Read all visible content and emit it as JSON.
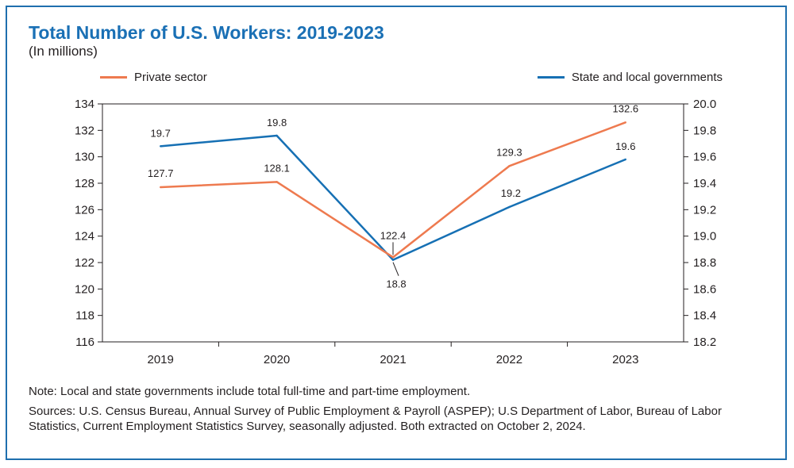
{
  "header": {
    "title": "Total Number of U.S. Workers: 2019-2023",
    "subtitle": "(In millions)"
  },
  "colors": {
    "private": "#ee7a4f",
    "state": "#1670b4",
    "axis": "#231f20",
    "title": "#1a70b5"
  },
  "notes": {
    "note": "Note: Local and state governments include total full-time and part-time employment.",
    "sources": "Sources: U.S. Census Bureau, Annual Survey of Public Employment & Payroll (ASPEP); U.S Department of Labor, Bureau of Labor Statistics, Current Employment Statistics Survey, seasonally adjusted. Both extracted on October 2, 2024."
  },
  "chart_data": {
    "type": "line",
    "title": "Total Number of U.S. Workers: 2019-2023",
    "subtitle": "(In millions)",
    "categories": [
      "2019",
      "2020",
      "2021",
      "2022",
      "2023"
    ],
    "series": [
      {
        "name": "Private sector",
        "axis": "left",
        "color": "#ee7a4f",
        "values": [
          127.7,
          128.1,
          122.4,
          129.3,
          132.6
        ],
        "labels": [
          "127.7",
          "128.1",
          "122.4",
          "129.3",
          "132.6"
        ]
      },
      {
        "name": "State and local governments",
        "axis": "right",
        "color": "#1670b4",
        "values": [
          19.68,
          19.76,
          18.82,
          19.22,
          19.58
        ],
        "labels": [
          "19.7",
          "19.8",
          "18.8",
          "19.2",
          "19.6"
        ]
      }
    ],
    "y_left": {
      "min": 116,
      "max": 134,
      "ticks": [
        "116",
        "118",
        "120",
        "122",
        "124",
        "126",
        "128",
        "130",
        "132",
        "134"
      ]
    },
    "y_right": {
      "min": 18.2,
      "max": 20.0,
      "ticks": [
        "18.2",
        "18.4",
        "18.6",
        "18.8",
        "19.0",
        "19.2",
        "19.4",
        "19.6",
        "19.8",
        "20.0"
      ]
    },
    "legend_position": "top",
    "grid": false
  }
}
